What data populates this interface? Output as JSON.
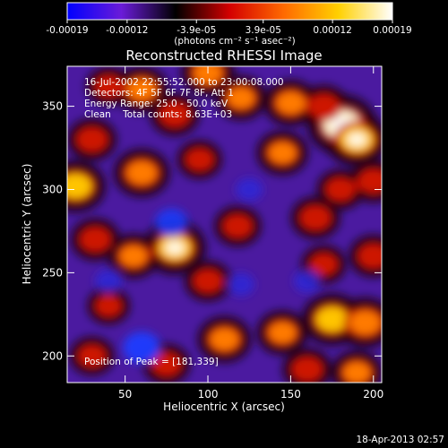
{
  "chart_data": {
    "type": "heatmap",
    "title": "Reconstructed RHESSI Image",
    "xlabel": "Heliocentric X (arcsec)",
    "ylabel": "Heliocentric Y (arcsec)",
    "xlim": [
      15,
      205
    ],
    "ylim": [
      184,
      374
    ],
    "x_ticks": [
      50,
      100,
      150,
      200
    ],
    "y_ticks": [
      200,
      250,
      300,
      350
    ],
    "colorbar": {
      "ticks": [
        "-0.00019",
        "-0.00012",
        "-3.9e-05",
        "3.9e-05",
        "0.00012",
        "0.00019"
      ],
      "range": [
        -0.00019,
        0.00019
      ],
      "unit_label": "(photons cm⁻² s⁻¹ asec⁻²)",
      "colors": [
        "#0000ff",
        "#6a1bd8",
        "#000000",
        "#d40000",
        "#ff6a00",
        "#ffd000",
        "#ffffff"
      ]
    },
    "annotations": [
      "16-Jul-2002 22:55:52.000 to 23:00:08.000",
      "Detectors: 4F 5F 6F 7F 8F, Att 1",
      "Energy Range: 25.0 - 50.0 keV",
      "Clean    Total counts: 8.63E+03"
    ],
    "peak_label": "Position of Peak = [181,339]",
    "blobs": [
      {
        "x": 181,
        "y": 339,
        "value": 0.00019
      },
      {
        "x": 190,
        "y": 330,
        "value": 0.00016
      },
      {
        "x": 170,
        "y": 350,
        "value": 0.0001
      },
      {
        "x": 150,
        "y": 352,
        "value": 0.00012
      },
      {
        "x": 120,
        "y": 355,
        "value": 0.00011
      },
      {
        "x": 100,
        "y": 370,
        "value": 0.00012
      },
      {
        "x": 80,
        "y": 345,
        "value": 0.0001
      },
      {
        "x": 60,
        "y": 360,
        "value": 0.00012
      },
      {
        "x": 40,
        "y": 362,
        "value": 8e-05
      },
      {
        "x": 30,
        "y": 330,
        "value": 0.0001
      },
      {
        "x": 20,
        "y": 302,
        "value": 0.00015
      },
      {
        "x": 60,
        "y": 310,
        "value": 0.00013
      },
      {
        "x": 95,
        "y": 318,
        "value": 8e-05
      },
      {
        "x": 145,
        "y": 322,
        "value": 0.00011
      },
      {
        "x": 180,
        "y": 300,
        "value": 9e-05
      },
      {
        "x": 200,
        "y": 305,
        "value": 0.0001
      },
      {
        "x": 80,
        "y": 265,
        "value": 0.00016
      },
      {
        "x": 55,
        "y": 260,
        "value": 0.00011
      },
      {
        "x": 32,
        "y": 270,
        "value": 0.0001
      },
      {
        "x": 118,
        "y": 278,
        "value": 9e-05
      },
      {
        "x": 165,
        "y": 283,
        "value": 0.0001
      },
      {
        "x": 200,
        "y": 260,
        "value": 0.0001
      },
      {
        "x": 170,
        "y": 255,
        "value": 8e-05
      },
      {
        "x": 100,
        "y": 245,
        "value": 9e-05
      },
      {
        "x": 40,
        "y": 230,
        "value": 7e-05
      },
      {
        "x": 110,
        "y": 210,
        "value": 0.00012
      },
      {
        "x": 145,
        "y": 214,
        "value": 0.00011
      },
      {
        "x": 175,
        "y": 222,
        "value": 0.00015
      },
      {
        "x": 195,
        "y": 220,
        "value": 0.00014
      },
      {
        "x": 160,
        "y": 192,
        "value": 0.0001
      },
      {
        "x": 190,
        "y": 190,
        "value": 0.00011
      },
      {
        "x": 75,
        "y": 195,
        "value": 9e-05
      },
      {
        "x": 30,
        "y": 200,
        "value": 8e-05
      },
      {
        "x": 78,
        "y": 280,
        "value": -0.0001
      },
      {
        "x": 60,
        "y": 205,
        "value": -0.00013
      },
      {
        "x": 120,
        "y": 243,
        "value": -6e-05
      },
      {
        "x": 125,
        "y": 300,
        "value": -6e-05
      },
      {
        "x": 160,
        "y": 245,
        "value": -6e-05
      },
      {
        "x": 40,
        "y": 245,
        "value": -6e-05
      }
    ]
  },
  "footer": {
    "timestamp": "18-Apr-2013 02:57"
  }
}
